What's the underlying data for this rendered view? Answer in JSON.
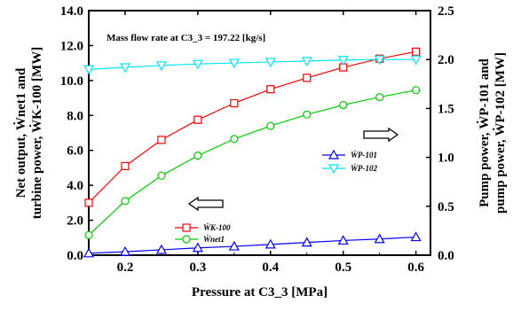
{
  "chart_data": {
    "type": "line",
    "annotation": "Mass flow rate at C3_3 = 197.22 [kg/s]",
    "xlabel": "Pressure at C3_3 [MPa]",
    "ylabel_left": [
      "Net output,  Ẇnet1 and",
      "turbine power,  ẆK-100 [MW]"
    ],
    "ylabel_right": [
      "Pump power,  ẆP-101 and",
      "pump power,  ẆP-102 [MW]"
    ],
    "xlim": [
      0.15,
      0.62
    ],
    "ylim_left": [
      0,
      14
    ],
    "ylim_right": [
      0,
      2.5
    ],
    "x_ticks": [
      "0.2",
      "0.3",
      "0.4",
      "0.5",
      "0.6"
    ],
    "x_tick_values": [
      0.2,
      0.3,
      0.4,
      0.5,
      0.6
    ],
    "y_left_ticks": [
      "0.0",
      "2.0",
      "4.0",
      "6.0",
      "8.0",
      "10.0",
      "12.0",
      "14.0"
    ],
    "y_left_tick_values": [
      0,
      2,
      4,
      6,
      8,
      10,
      12,
      14
    ],
    "y_right_ticks": [
      "0.0",
      "0.5",
      "1.0",
      "1.5",
      "2.0",
      "2.5"
    ],
    "y_right_tick_values": [
      0,
      0.5,
      1.0,
      1.5,
      2.0,
      2.5
    ],
    "x": [
      0.15,
      0.2,
      0.25,
      0.3,
      0.35,
      0.4,
      0.45,
      0.5,
      0.55,
      0.6
    ],
    "series": [
      {
        "name": "ẆK-100",
        "axis": "left",
        "color": "#ff0000",
        "marker": "square",
        "values": [
          3.0,
          5.1,
          6.6,
          7.75,
          8.7,
          9.5,
          10.15,
          10.75,
          11.25,
          11.65
        ]
      },
      {
        "name": "Ẇnet1",
        "axis": "left",
        "color": "#00cc00",
        "marker": "circle",
        "values": [
          1.15,
          3.1,
          4.55,
          5.7,
          6.65,
          7.4,
          8.05,
          8.6,
          9.05,
          9.45
        ]
      },
      {
        "name": "ẆP-101",
        "axis": "right",
        "color": "#0000ff",
        "marker": "triangle-up",
        "values": [
          0.02,
          0.035,
          0.055,
          0.075,
          0.09,
          0.11,
          0.13,
          0.15,
          0.165,
          0.185
        ]
      },
      {
        "name": "ẆP-102",
        "axis": "right",
        "color": "#00e5ff",
        "marker": "triangle-down",
        "values": [
          1.9,
          1.92,
          1.94,
          1.955,
          1.965,
          1.975,
          1.985,
          1.995,
          2.0,
          2.0
        ]
      }
    ],
    "legends": [
      {
        "position": "center-left",
        "series": [
          "ẆK-100",
          "Ẇnet1"
        ]
      },
      {
        "position": "center-right",
        "series": [
          "ẆP-101",
          "ẆP-102"
        ]
      }
    ],
    "arrows": [
      {
        "direction": "left",
        "meaning": "left axis"
      },
      {
        "direction": "right",
        "meaning": "right axis"
      }
    ],
    "grid": false
  }
}
